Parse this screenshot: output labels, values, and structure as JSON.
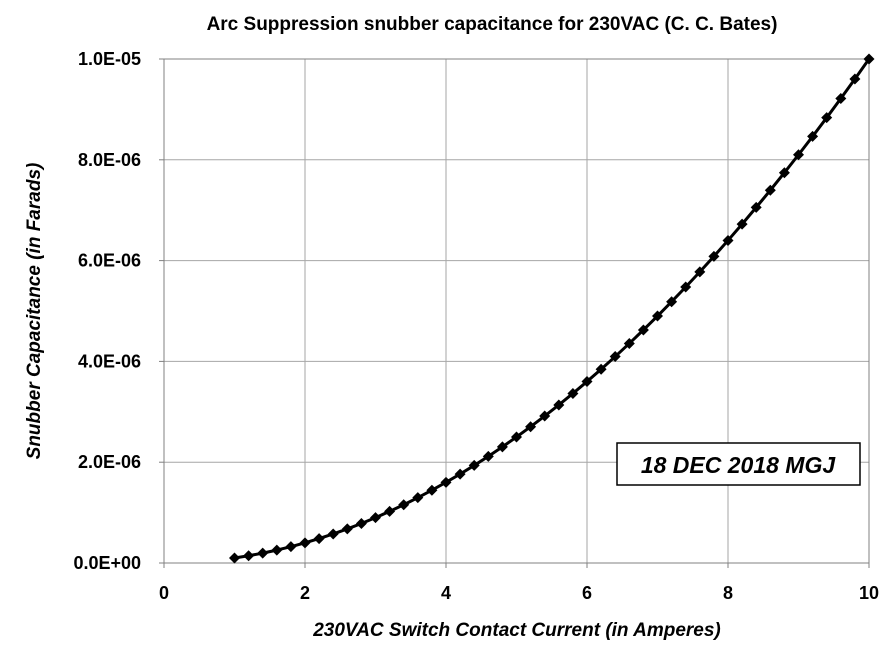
{
  "chart_data": {
    "type": "line",
    "title": "Arc Suppression snubber capacitance for 230VAC (C. C. Bates)",
    "xlabel": "230VAC Switch Contact Current  (in Amperes)",
    "ylabel": "Snubber Capacitance (in Farads)",
    "xlim": [
      0,
      10
    ],
    "ylim": [
      0,
      1e-05
    ],
    "x_ticks": [
      0,
      2,
      4,
      6,
      8,
      10
    ],
    "x_tick_labels": [
      "0",
      "2",
      "4",
      "6",
      "8",
      "10"
    ],
    "y_ticks": [
      0,
      2e-06,
      4e-06,
      6e-06,
      8e-06,
      1e-05
    ],
    "y_tick_labels": [
      "0.0E+00",
      "2.0E-06",
      "4.0E-06",
      "6.0E-06",
      "8.0E-06",
      "1.0E-05"
    ],
    "grid": true,
    "legend": "none",
    "annotation": "18 DEC 2018  MGJ",
    "series": [
      {
        "marker": "diamond",
        "color": "#000000",
        "x": [
          1.0,
          1.2,
          1.4,
          1.6,
          1.8,
          2.0,
          2.2,
          2.4,
          2.6,
          2.8,
          3.0,
          3.2,
          3.4,
          3.6,
          3.8,
          4.0,
          4.2,
          4.4,
          4.6,
          4.8,
          5.0,
          5.2,
          5.4,
          5.6,
          5.8,
          6.0,
          6.2,
          6.4,
          6.6,
          6.8,
          7.0,
          7.2,
          7.4,
          7.6,
          7.8,
          8.0,
          8.2,
          8.4,
          8.6,
          8.8,
          9.0,
          9.2,
          9.4,
          9.6,
          9.8,
          10.0
        ],
        "values": [
          1e-07,
          1.44e-07,
          1.96e-07,
          2.56e-07,
          3.24e-07,
          4e-07,
          4.84e-07,
          5.76e-07,
          6.76e-07,
          7.84e-07,
          9e-07,
          1.024e-06,
          1.156e-06,
          1.296e-06,
          1.444e-06,
          1.6e-06,
          1.764e-06,
          1.936e-06,
          2.116e-06,
          2.304e-06,
          2.5e-06,
          2.704e-06,
          2.916e-06,
          3.136e-06,
          3.364e-06,
          3.6e-06,
          3.844e-06,
          4.096e-06,
          4.356e-06,
          4.624e-06,
          4.9e-06,
          5.184e-06,
          5.476e-06,
          5.776e-06,
          6.084e-06,
          6.4e-06,
          6.724e-06,
          7.056e-06,
          7.396e-06,
          7.744e-06,
          8.1e-06,
          8.464e-06,
          8.836e-06,
          9.216e-06,
          9.604e-06,
          1e-05
        ]
      }
    ]
  }
}
